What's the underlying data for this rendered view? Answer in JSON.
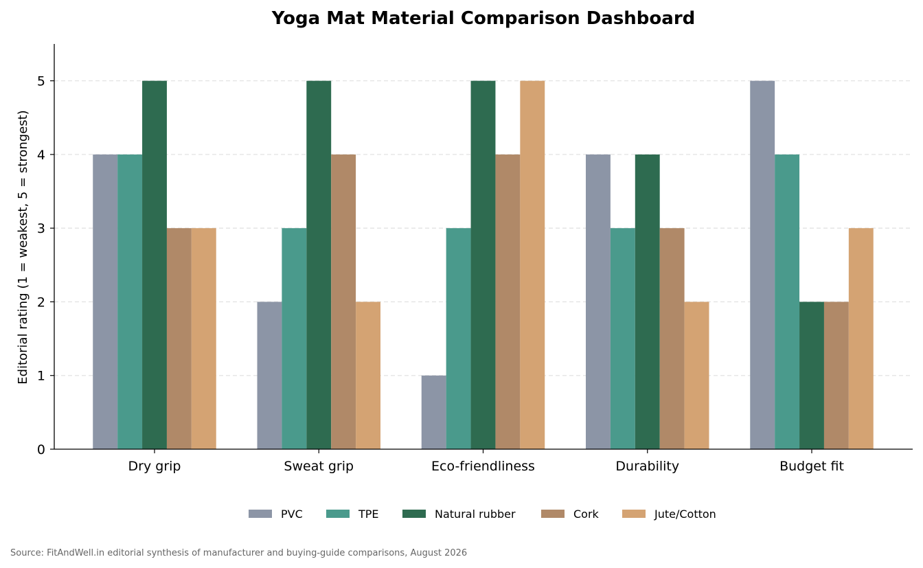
{
  "chart_data": {
    "type": "bar",
    "title": "Yoga Mat Material Comparison Dashboard",
    "xlabel": "",
    "ylabel": "Editorial rating (1 = weakest, 5 = strongest)",
    "ylim": [
      0,
      5.5
    ],
    "yticks": [
      0,
      1,
      2,
      3,
      4,
      5
    ],
    "grid": "horizontal dashed",
    "legend_position": "bottom-center",
    "categories": [
      "Dry grip",
      "Sweat grip",
      "Eco-friendliness",
      "Durability",
      "Budget fit"
    ],
    "series": [
      {
        "name": "PVC",
        "color": "#8c95a6",
        "values": [
          4,
          2,
          1,
          4,
          5
        ]
      },
      {
        "name": "TPE",
        "color": "#4a9a8c",
        "values": [
          4,
          3,
          3,
          3,
          4
        ]
      },
      {
        "name": "Natural rubber",
        "color": "#2e6b50",
        "values": [
          5,
          5,
          5,
          4,
          2
        ]
      },
      {
        "name": "Cork",
        "color": "#b08968",
        "values": [
          3,
          4,
          4,
          3,
          2
        ]
      },
      {
        "name": "Jute/Cotton",
        "color": "#d4a373",
        "values": [
          3,
          2,
          5,
          2,
          3
        ]
      }
    ],
    "source": "Source: FitAndWell.in editorial synthesis of manufacturer and buying-guide comparisons, August 2026"
  }
}
